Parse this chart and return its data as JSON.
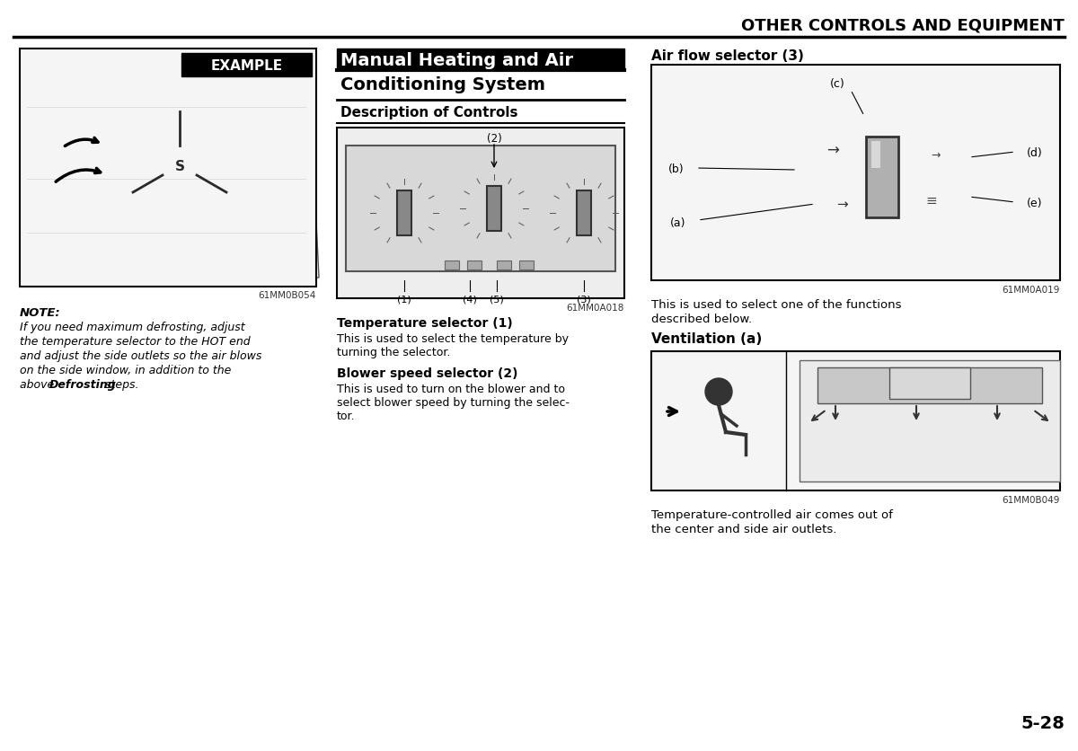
{
  "page_bg": "#ffffff",
  "header_title": "OTHER CONTROLS AND EQUIPMENT",
  "main_title_line1": "Manual Heating and Air",
  "main_title_line2": "Conditioning System",
  "section_title": "Description of Controls",
  "col1_note_title": "NOTE:",
  "col1_note_lines": [
    "If you need maximum defrosting, adjust",
    "the temperature selector to the HOT end",
    "and adjust the side outlets so the air blows",
    "on the side window, in addition to the",
    "above "
  ],
  "col1_note_bold": "Defrosting",
  "col1_note_last": " steps.",
  "col2_temp_title": "Temperature selector (1)",
  "col2_temp_text": "This is used to select the temperature by\nturning the selector.",
  "col2_blower_title": "Blower speed selector (2)",
  "col2_blower_text": "This is used to turn on the blower and to\nselect blower speed by turning the selec-\ntor.",
  "col3_airflow_title": "Air flow selector (3)",
  "col3_airflow_labels": [
    "(a)",
    "(b)",
    "(c)",
    "(d)",
    "(e)"
  ],
  "col3_desc": "This is used to select one of the functions\ndescribed below.",
  "col3_vent_title": "Ventilation (a)",
  "col3_vent_text": "Temperature-controlled air comes out of\nthe center and side air outlets.",
  "img1_label": "EXAMPLE",
  "img1_code": "61MM0B054",
  "img2_code": "61MM0A018",
  "img2_labels": [
    "(1)",
    "(4)",
    "(5)",
    "(3)"
  ],
  "img2_label2": "(2)",
  "img3_code": "61MM0A019",
  "img4_code": "61MM0B049",
  "page_number": "5-28",
  "text_color": "#000000",
  "gray_img": "#e8e8e8",
  "border_color": "#000000"
}
